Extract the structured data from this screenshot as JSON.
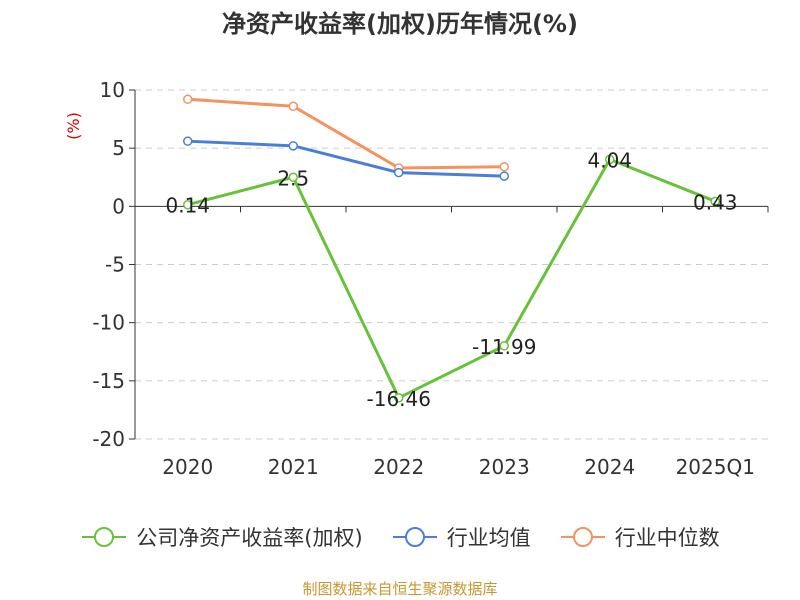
{
  "chart_data": {
    "type": "line",
    "title": "净资产收益率(加权)历年情况(%)",
    "ylabel": "(%)",
    "xlabel": "",
    "categories": [
      "2020",
      "2021",
      "2022",
      "2023",
      "2024",
      "2025Q1"
    ],
    "ylim": [
      -20,
      10
    ],
    "yticks": [
      10,
      5,
      0,
      -5,
      -10,
      -15,
      -20
    ],
    "grid": true,
    "legend_position": "bottom",
    "series": [
      {
        "name": "公司净资产收益率(加权)",
        "color": "#67c23a",
        "values": [
          0.14,
          2.5,
          -16.46,
          -11.99,
          4.04,
          0.43
        ],
        "data_labels": [
          "0.14",
          "2.5",
          "-16.46",
          "-11.99",
          "4.04",
          "0.43"
        ]
      },
      {
        "name": "行业均值",
        "color": "#4a7fd8",
        "values": [
          5.6,
          5.2,
          2.9,
          2.6,
          null,
          null
        ]
      },
      {
        "name": "行业中位数",
        "color": "#f59260",
        "values": [
          9.2,
          8.6,
          3.3,
          3.4,
          null,
          null
        ]
      }
    ]
  },
  "source_text": "制图数据来自恒生聚源数据库",
  "colors": {
    "axis": "#333333",
    "grid": "#cccccc",
    "ylabel": "#dd0000",
    "source": "#c89632"
  }
}
